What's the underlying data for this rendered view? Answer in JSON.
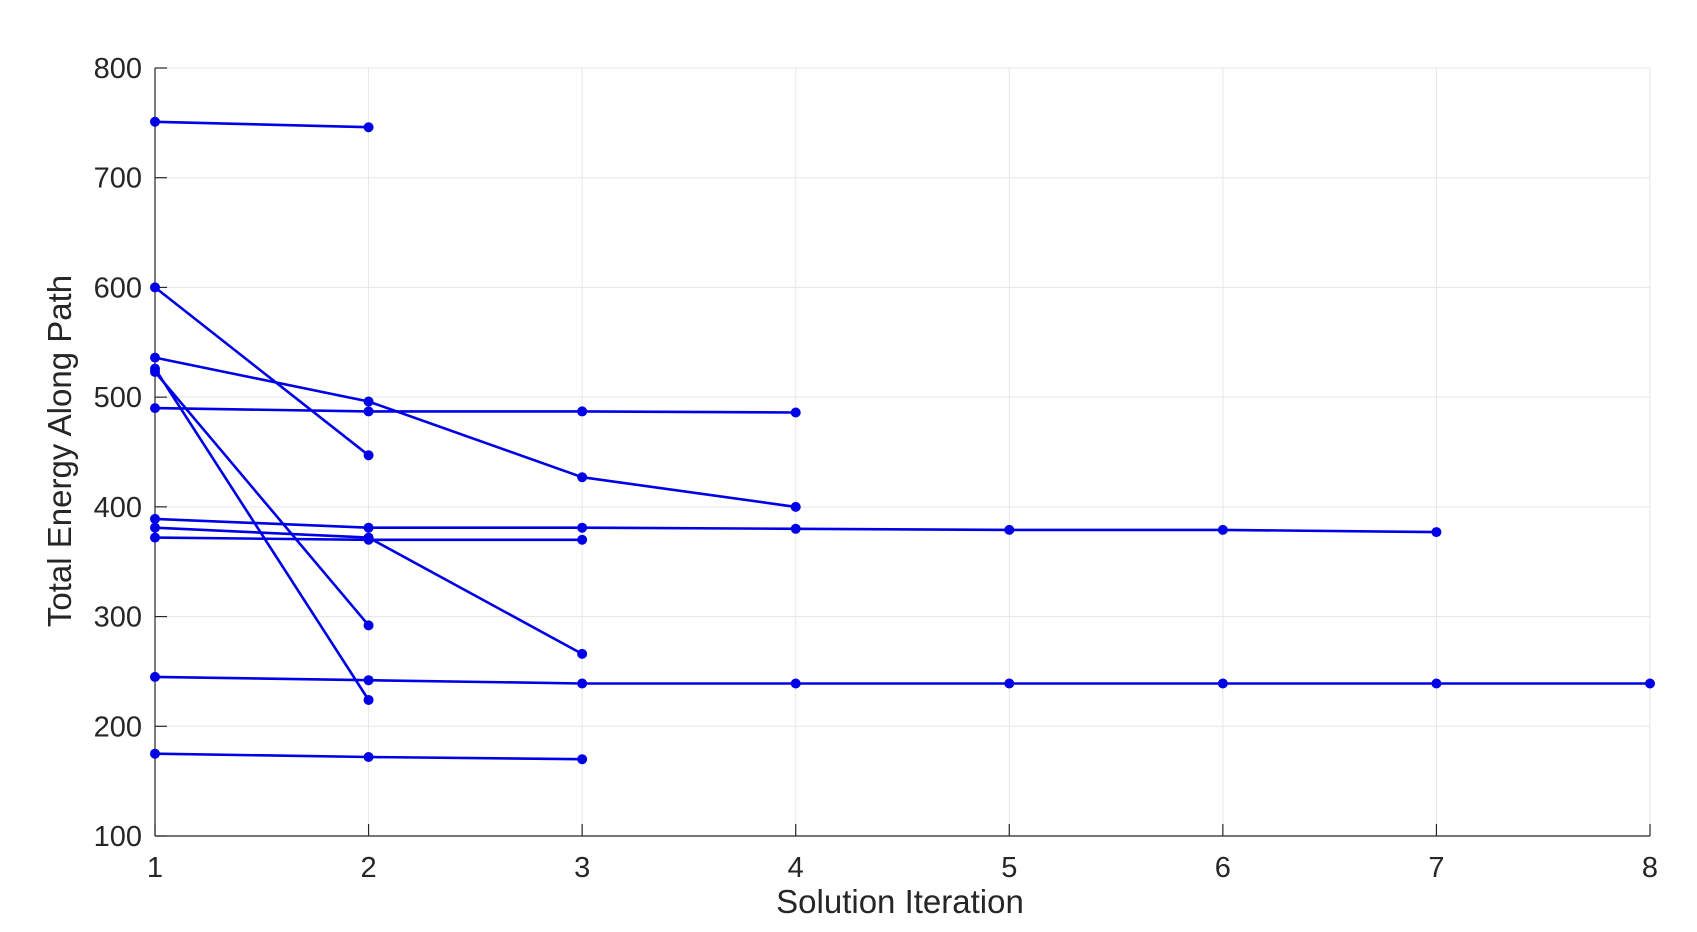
{
  "chart_data": {
    "type": "line",
    "title": "",
    "xlabel": "Solution Iteration",
    "ylabel": "Total Energy Along Path",
    "xlim": [
      1,
      8
    ],
    "ylim": [
      100,
      800
    ],
    "xticks": [
      1,
      2,
      3,
      4,
      5,
      6,
      7,
      8
    ],
    "yticks": [
      100,
      200,
      300,
      400,
      500,
      600,
      700,
      800
    ],
    "grid": true,
    "legend": "none",
    "colors": {
      "series": "#0000e6",
      "grid": "#e6e6e6",
      "axis": "#262626"
    },
    "series": [
      {
        "x": [
          1,
          2
        ],
        "y": [
          751,
          746
        ]
      },
      {
        "x": [
          1,
          2
        ],
        "y": [
          600,
          447
        ]
      },
      {
        "x": [
          1,
          2,
          3,
          4
        ],
        "y": [
          536,
          496,
          427,
          400
        ]
      },
      {
        "x": [
          1,
          2
        ],
        "y": [
          523,
          292
        ]
      },
      {
        "x": [
          1,
          2
        ],
        "y": [
          526,
          224
        ]
      },
      {
        "x": [
          1,
          2,
          3,
          4
        ],
        "y": [
          490,
          487,
          487,
          486
        ]
      },
      {
        "x": [
          1,
          2,
          3,
          4,
          5,
          6,
          7
        ],
        "y": [
          389,
          381,
          381,
          380,
          379,
          379,
          377
        ]
      },
      {
        "x": [
          1,
          2,
          3
        ],
        "y": [
          381,
          372,
          266
        ]
      },
      {
        "x": [
          1,
          2,
          3
        ],
        "y": [
          372,
          370,
          370
        ]
      },
      {
        "x": [
          1,
          2,
          3,
          4,
          5,
          6,
          7,
          8
        ],
        "y": [
          245,
          242,
          239,
          239,
          239,
          239,
          239,
          239
        ]
      },
      {
        "x": [
          1,
          2,
          3
        ],
        "y": [
          175,
          172,
          170
        ]
      }
    ]
  }
}
